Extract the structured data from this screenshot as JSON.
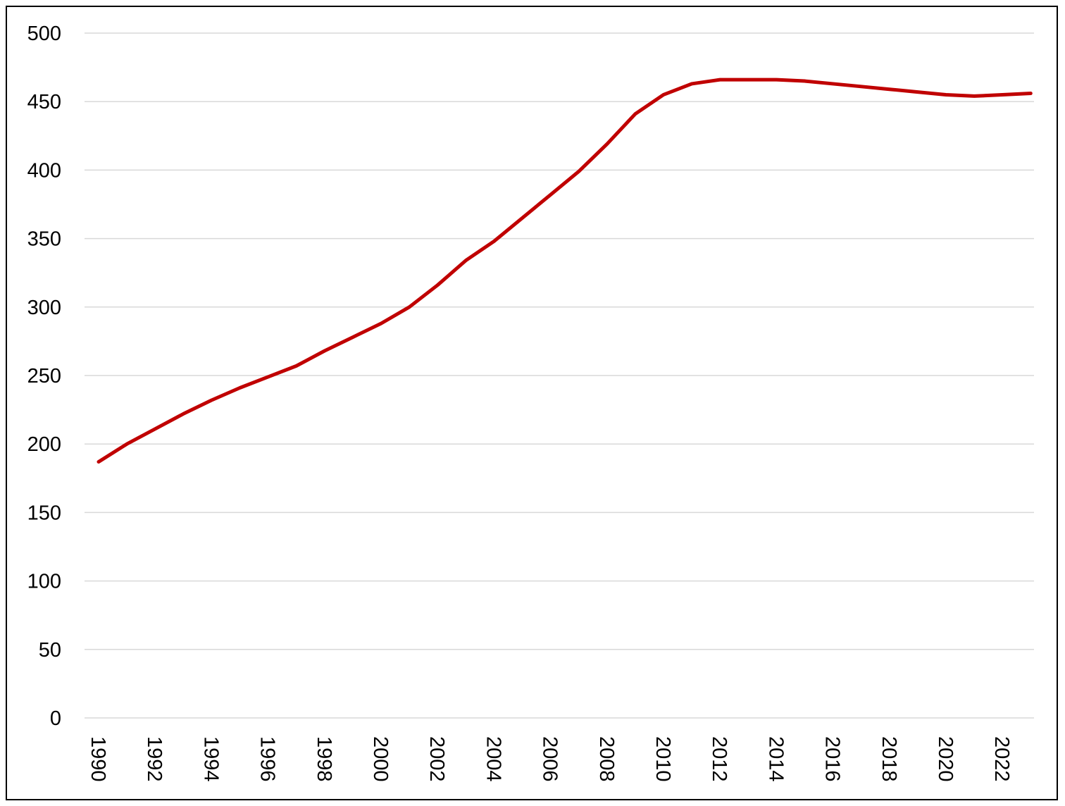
{
  "chart_data": {
    "type": "line",
    "title": "",
    "xlabel": "",
    "ylabel": "",
    "ylim": [
      0,
      500
    ],
    "yticks": [
      "0",
      "50",
      "100",
      "150",
      "200",
      "250",
      "300",
      "350",
      "400",
      "450",
      "500"
    ],
    "xticks": [
      "1990",
      "1992",
      "1994",
      "1996",
      "1998",
      "2000",
      "2002",
      "2004",
      "2006",
      "2008",
      "2010",
      "2012",
      "2014",
      "2016",
      "2018",
      "2020",
      "2022"
    ],
    "grid": true,
    "legend": "none",
    "colors": {
      "series": "#C00000",
      "grid": "#D9D9D9",
      "text": "#000000"
    },
    "x": [
      1990,
      1991,
      1992,
      1993,
      1994,
      1995,
      1996,
      1997,
      1998,
      1999,
      2000,
      2001,
      2002,
      2003,
      2004,
      2005,
      2006,
      2007,
      2008,
      2009,
      2010,
      2011,
      2012,
      2013,
      2014,
      2015,
      2016,
      2017,
      2018,
      2019,
      2020,
      2021,
      2022,
      2023
    ],
    "series": [
      {
        "values": [
          187,
          200,
          211,
          222,
          232,
          241,
          249,
          257,
          268,
          278,
          288,
          300,
          316,
          334,
          348,
          365,
          382,
          399,
          419,
          441,
          455,
          463,
          466,
          466,
          466,
          465,
          463,
          461,
          459,
          457,
          455,
          454,
          455,
          456
        ]
      }
    ]
  }
}
